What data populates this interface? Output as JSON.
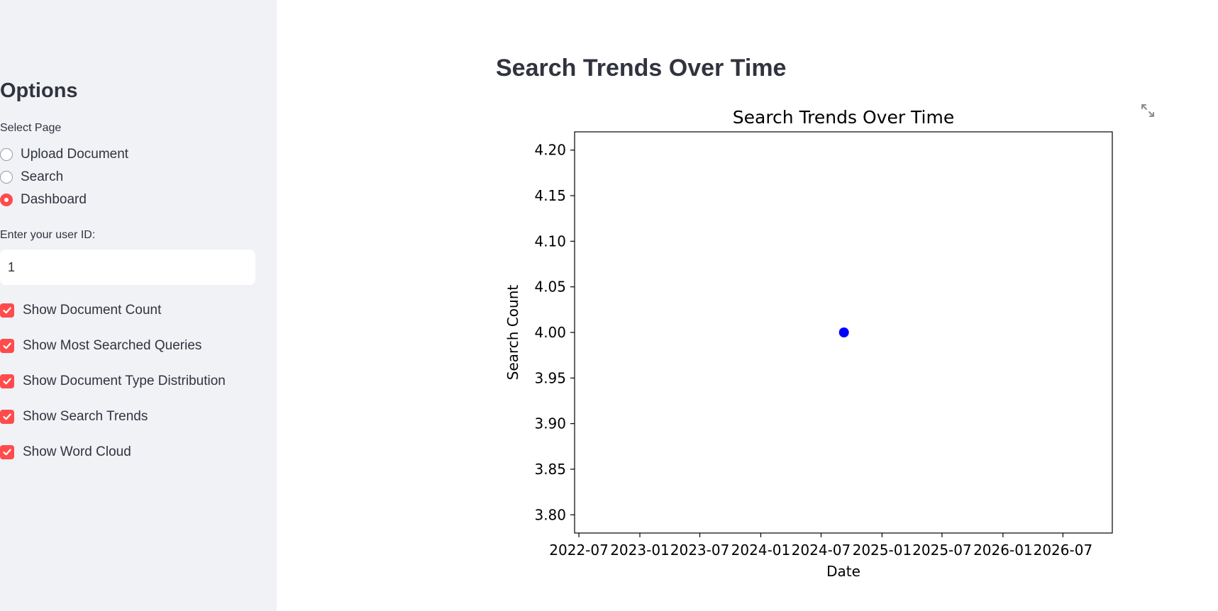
{
  "sidebar": {
    "heading": "Options",
    "page_select": {
      "label": "Select Page",
      "options": [
        {
          "label": "Upload Document",
          "selected": false
        },
        {
          "label": "Search",
          "selected": false
        },
        {
          "label": "Dashboard",
          "selected": true
        }
      ]
    },
    "user_id": {
      "label": "Enter your user ID:",
      "value": "1"
    },
    "toggles": [
      {
        "label": "Show Document Count",
        "checked": true
      },
      {
        "label": "Show Most Searched Queries",
        "checked": true
      },
      {
        "label": "Show Document Type Distribution",
        "checked": true
      },
      {
        "label": "Show Search Trends",
        "checked": true
      },
      {
        "label": "Show Word Cloud",
        "checked": true
      }
    ]
  },
  "main": {
    "title": "Search Trends Over Time",
    "fullscreen_icon": "expand-icon"
  },
  "colors": {
    "accent": "#ff4b4b",
    "sidebar_bg": "#f0f2f6",
    "text": "#31333f",
    "point": "#0000ff"
  },
  "chart_data": {
    "type": "scatter",
    "title": "Search Trends Over Time",
    "xlabel": "Date",
    "ylabel": "Search Count",
    "x_ticks": [
      "2022-07",
      "2023-01",
      "2023-07",
      "2024-01",
      "2024-07",
      "2025-01",
      "2025-07",
      "2026-01",
      "2026-07"
    ],
    "y_ticks": [
      "3.80",
      "3.85",
      "3.90",
      "3.95",
      "4.00",
      "4.05",
      "4.10",
      "4.15",
      "4.20"
    ],
    "xlim": [
      "2022-06-18",
      "2026-11-27"
    ],
    "ylim": [
      3.78,
      4.22
    ],
    "points": [
      {
        "x": "2024-09-08",
        "y": 4.0
      }
    ],
    "grid": false,
    "legend": "none"
  }
}
